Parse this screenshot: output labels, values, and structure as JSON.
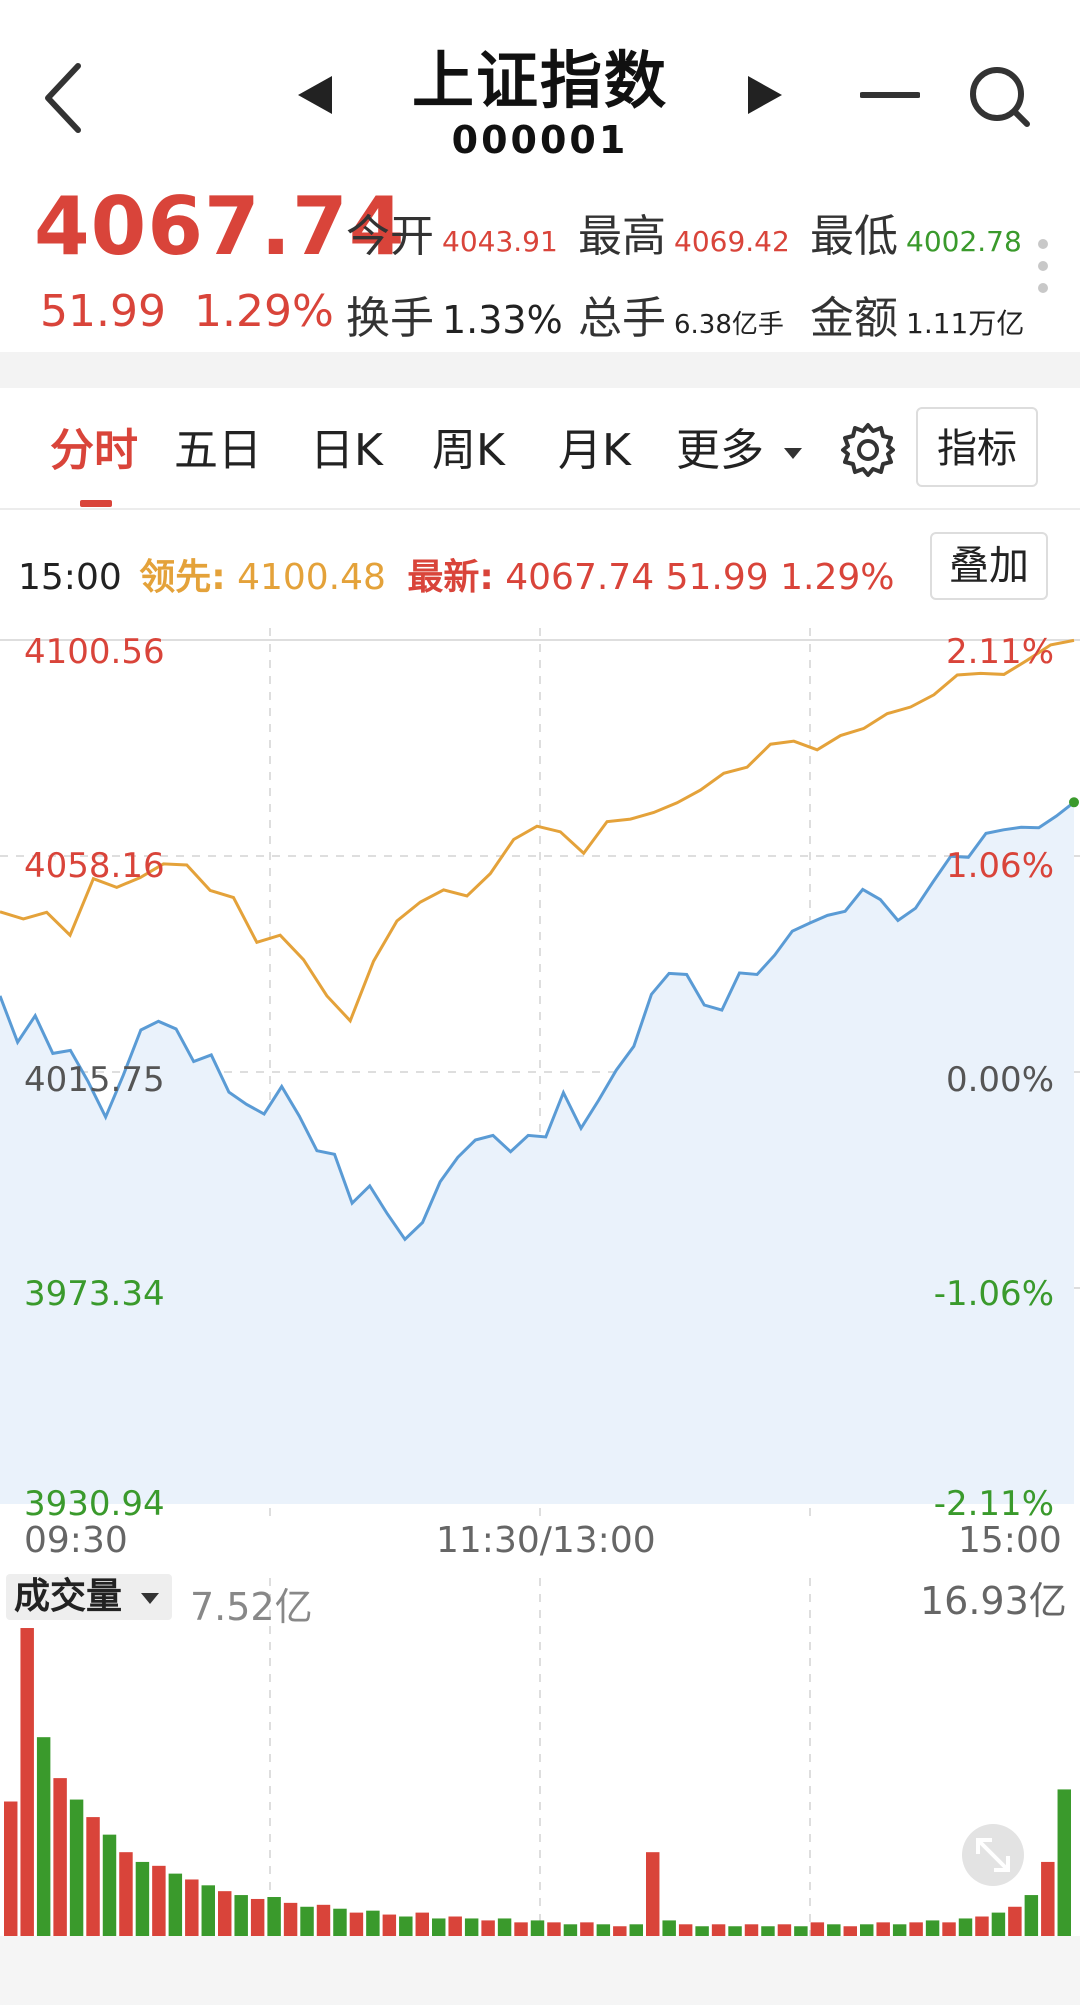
{
  "header": {
    "title": "上证指数",
    "code": "000001",
    "icons": {
      "back": "chevron-left-icon",
      "prev": "triangle-left-icon",
      "next": "triangle-right-icon",
      "minus": "minus-icon",
      "search": "search-icon"
    }
  },
  "quote": {
    "price": "4067.74",
    "change_abs": "51.99",
    "change_pct": "1.29%",
    "stats": [
      {
        "label": "今开",
        "value": "4043.91",
        "color": "#d9443a"
      },
      {
        "label": "最高",
        "value": "4069.42",
        "color": "#d9443a"
      },
      {
        "label": "最低",
        "value": "4002.78",
        "color": "#3a9a2c"
      },
      {
        "label": "换手",
        "value": "1.33%",
        "color": "#222222"
      },
      {
        "label": "总手",
        "value": "6.38亿手",
        "color": "#222222"
      },
      {
        "label": "金额",
        "value": "1.11万亿",
        "color": "#222222"
      }
    ]
  },
  "tabs": [
    {
      "label": "分时",
      "active": true
    },
    {
      "label": "五日",
      "active": false
    },
    {
      "label": "日K",
      "active": false
    },
    {
      "label": "周K",
      "active": false
    },
    {
      "label": "月K",
      "active": false
    },
    {
      "label": "更多",
      "active": false
    }
  ],
  "indicator_button": "指标",
  "info": {
    "time": "15:00",
    "lead_label": "领先:",
    "lead_value": "4100.48",
    "latest_label": "最新:",
    "latest_value": "4067.74",
    "latest_change": "51.99",
    "latest_pct": "1.29%",
    "overlay_button": "叠加"
  },
  "chart_data": {
    "type": "line",
    "title": "",
    "ylim": [
      3930.94,
      4100.56
    ],
    "y_ticks": [
      "4100.56",
      "4058.16",
      "4015.75",
      "3973.34",
      "3930.94"
    ],
    "y_ticks_right": [
      "2.11%",
      "1.06%",
      "0.00%",
      "-1.06%",
      "-2.11%"
    ],
    "x_ticks": [
      "09:30",
      "11:30/13:00",
      "15:00"
    ],
    "grid": true,
    "baseline": 4015.75,
    "colors": {
      "price": "#5a9bd5",
      "lead": "#e4a23a",
      "up": "#d9443a",
      "down": "#3a9a2c"
    },
    "series": [
      {
        "key": "price",
        "values": [
          4030.7,
          4021.6,
          4026.8,
          4019.4,
          4020.0,
          4013.9,
          4006.9,
          4015.1,
          4024.0,
          4025.7,
          4024.2,
          4017.8,
          4019.1,
          4011.8,
          4009.4,
          4007.5,
          4012.9,
          4007.1,
          4000.3,
          3999.6,
          3990.0,
          3993.4,
          3987.9,
          3982.9,
          3986.2,
          3994.2,
          3999.0,
          4002.4,
          4003.3,
          4000.1,
          4003.3,
          4003.0,
          4011.7,
          4004.7,
          4010.2,
          4016.1,
          4020.8,
          4031.0,
          4035.1,
          4034.9,
          4028.9,
          4027.9,
          4035.2,
          4034.9,
          4038.7,
          4043.4,
          4045.0,
          4046.5,
          4047.3,
          4051.6,
          4049.6,
          4045.5,
          4047.9,
          4053.1,
          4058.1,
          4057.9,
          4062.6,
          4063.3,
          4063.8,
          4063.7,
          4066.0,
          4068.7
        ]
      },
      {
        "key": "lead",
        "values": [
          4047.2,
          4045.8,
          4047.1,
          4042.6,
          4053.7,
          4052.0,
          4053.9,
          4056.6,
          4056.4,
          4051.4,
          4050.0,
          4041.2,
          4042.6,
          4037.8,
          4030.7,
          4025.8,
          4037.5,
          4045.4,
          4049.1,
          4051.5,
          4050.3,
          4054.7,
          4061.4,
          4064.0,
          4062.9,
          4058.7,
          4064.9,
          4065.4,
          4066.7,
          4068.6,
          4071.1,
          4074.4,
          4075.6,
          4080.1,
          4080.7,
          4079.0,
          4081.8,
          4083.2,
          4086.1,
          4087.4,
          4089.8,
          4093.7,
          4094.0,
          4093.8,
          4096.6,
          4099.6,
          4100.48
        ]
      }
    ]
  },
  "volume": {
    "label": "成交量",
    "current": "7.52亿",
    "max": "16.93亿",
    "max_value": 16.93,
    "bars": [
      {
        "v": 6.9,
        "up": true
      },
      {
        "v": 15.8,
        "up": true
      },
      {
        "v": 10.2,
        "up": false
      },
      {
        "v": 8.1,
        "up": true
      },
      {
        "v": 7.0,
        "up": false
      },
      {
        "v": 6.1,
        "up": true
      },
      {
        "v": 5.2,
        "up": false
      },
      {
        "v": 4.3,
        "up": true
      },
      {
        "v": 3.8,
        "up": false
      },
      {
        "v": 3.6,
        "up": true
      },
      {
        "v": 3.2,
        "up": false
      },
      {
        "v": 2.9,
        "up": true
      },
      {
        "v": 2.6,
        "up": false
      },
      {
        "v": 2.3,
        "up": true
      },
      {
        "v": 2.1,
        "up": false
      },
      {
        "v": 1.9,
        "up": true
      },
      {
        "v": 2.0,
        "up": false
      },
      {
        "v": 1.7,
        "up": true
      },
      {
        "v": 1.5,
        "up": false
      },
      {
        "v": 1.6,
        "up": true
      },
      {
        "v": 1.4,
        "up": false
      },
      {
        "v": 1.2,
        "up": true
      },
      {
        "v": 1.3,
        "up": false
      },
      {
        "v": 1.1,
        "up": true
      },
      {
        "v": 1.0,
        "up": false
      },
      {
        "v": 1.2,
        "up": true
      },
      {
        "v": 0.9,
        "up": false
      },
      {
        "v": 1.0,
        "up": true
      },
      {
        "v": 0.9,
        "up": false
      },
      {
        "v": 0.8,
        "up": true
      },
      {
        "v": 0.9,
        "up": false
      },
      {
        "v": 0.7,
        "up": true
      },
      {
        "v": 0.8,
        "up": false
      },
      {
        "v": 0.7,
        "up": true
      },
      {
        "v": 0.6,
        "up": false
      },
      {
        "v": 0.7,
        "up": true
      },
      {
        "v": 0.6,
        "up": false
      },
      {
        "v": 0.5,
        "up": true
      },
      {
        "v": 0.6,
        "up": false
      },
      {
        "v": 4.3,
        "up": true
      },
      {
        "v": 0.8,
        "up": false
      },
      {
        "v": 0.6,
        "up": true
      },
      {
        "v": 0.5,
        "up": false
      },
      {
        "v": 0.6,
        "up": true
      },
      {
        "v": 0.5,
        "up": false
      },
      {
        "v": 0.6,
        "up": true
      },
      {
        "v": 0.5,
        "up": false
      },
      {
        "v": 0.6,
        "up": true
      },
      {
        "v": 0.5,
        "up": false
      },
      {
        "v": 0.7,
        "up": true
      },
      {
        "v": 0.6,
        "up": false
      },
      {
        "v": 0.5,
        "up": true
      },
      {
        "v": 0.6,
        "up": false
      },
      {
        "v": 0.7,
        "up": true
      },
      {
        "v": 0.6,
        "up": false
      },
      {
        "v": 0.7,
        "up": true
      },
      {
        "v": 0.8,
        "up": false
      },
      {
        "v": 0.7,
        "up": true
      },
      {
        "v": 0.9,
        "up": false
      },
      {
        "v": 1.0,
        "up": true
      },
      {
        "v": 1.2,
        "up": false
      },
      {
        "v": 1.5,
        "up": true
      },
      {
        "v": 2.1,
        "up": false
      },
      {
        "v": 3.8,
        "up": true
      },
      {
        "v": 7.52,
        "up": false
      }
    ]
  },
  "icons": {
    "settings": "gear-icon",
    "more": "more-vertical-icon",
    "expand": "expand-icon",
    "dropdown": "caret-down-icon"
  }
}
